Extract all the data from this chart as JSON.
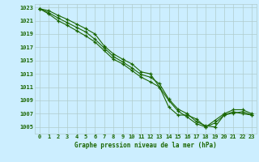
{
  "xlabel": "Graphe pression niveau de la mer (hPa)",
  "x": [
    0,
    1,
    2,
    3,
    4,
    5,
    6,
    7,
    8,
    9,
    10,
    11,
    12,
    13,
    14,
    15,
    16,
    17,
    18,
    19,
    20,
    21,
    22,
    23
  ],
  "line1": [
    1022.8,
    1022.5,
    1021.8,
    1021.2,
    1020.5,
    1019.8,
    1019.0,
    1017.2,
    1016.0,
    1015.2,
    1014.5,
    1013.3,
    1013.0,
    1011.0,
    1008.0,
    1006.8,
    1006.8,
    1006.2,
    1005.0,
    1005.6,
    1006.8,
    1007.3,
    1007.0,
    1006.8
  ],
  "line2": [
    1022.8,
    1022.2,
    1021.4,
    1020.7,
    1020.0,
    1019.3,
    1018.2,
    1016.9,
    1015.6,
    1014.8,
    1013.9,
    1012.9,
    1012.5,
    1011.5,
    1009.2,
    1007.7,
    1007.0,
    1005.8,
    1005.2,
    1005.0,
    1006.8,
    1007.1,
    1007.3,
    1006.8
  ],
  "line3": [
    1022.8,
    1022.0,
    1021.0,
    1020.3,
    1019.5,
    1018.7,
    1017.8,
    1016.5,
    1015.2,
    1014.5,
    1013.5,
    1012.5,
    1011.8,
    1011.0,
    1009.0,
    1007.4,
    1006.5,
    1005.5,
    1005.0,
    1006.0,
    1007.0,
    1007.6,
    1007.6,
    1007.0
  ],
  "line_color": "#1a6600",
  "bg_color": "#cceeff",
  "grid_major_color": "#b0cccc",
  "grid_minor_color": "#d8eaea",
  "ylim_min": 1004.0,
  "ylim_max": 1023.5,
  "yticks": [
    1005,
    1007,
    1009,
    1011,
    1013,
    1015,
    1017,
    1019,
    1021,
    1023
  ]
}
